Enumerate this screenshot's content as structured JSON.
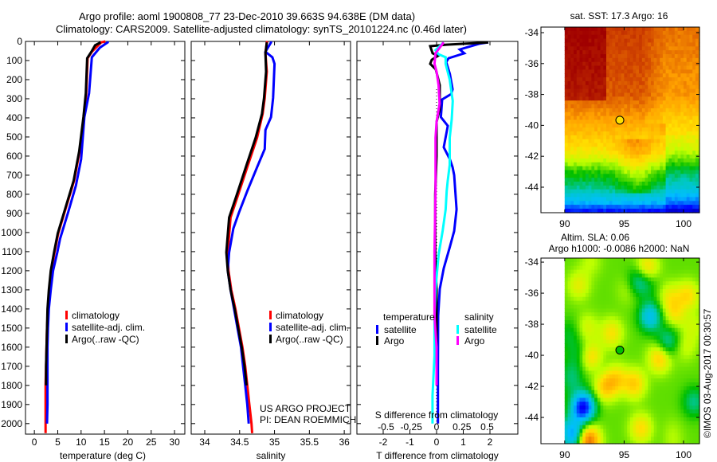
{
  "title": {
    "line1": "Argo profile: aoml 1900808_77 23-Dec-2010 39.663S 94.638E (DM data)",
    "line2": "Climatology: CARS2009. Satellite-adjusted climatology: synTS_20101224.nc (0.46d later)"
  },
  "colors": {
    "climatology": "#ff0000",
    "satellite": "#0000ff",
    "argo": "#000000",
    "sal_satellite": "#00ffff",
    "sal_argo": "#ff00ff"
  },
  "depth_axis": {
    "ticks": [
      0,
      100,
      200,
      300,
      400,
      500,
      600,
      700,
      800,
      900,
      1000,
      1100,
      1200,
      1300,
      1400,
      1500,
      1600,
      1700,
      1800,
      1900,
      2000
    ],
    "range": [
      0,
      2055
    ]
  },
  "chart_data": [
    {
      "type": "line",
      "name": "temperature",
      "xlabel": "temperature (deg C)",
      "xlim": [
        -1.9,
        32.2
      ],
      "xticks": [
        0,
        5,
        10,
        15,
        20,
        25,
        30
      ],
      "legend": {
        "placement": "lower-center",
        "items": [
          "climatology",
          "satellite-adj. clim.",
          "Argo(..raw -QC)"
        ]
      },
      "series": [
        {
          "name": "climatology",
          "color": "#ff0000",
          "points": [
            [
              15.2,
              0
            ],
            [
              14.3,
              5
            ],
            [
              12.3,
              54
            ],
            [
              11.4,
              88
            ],
            [
              11.1,
              271
            ],
            [
              10.6,
              396
            ],
            [
              9.7,
              575
            ],
            [
              8.5,
              729
            ],
            [
              6.8,
              867
            ],
            [
              5.1,
              1004
            ],
            [
              4.3,
              1104
            ],
            [
              3.6,
              1200
            ],
            [
              3.2,
              1300
            ],
            [
              2.9,
              1400
            ],
            [
              2.7,
              1500
            ],
            [
              2.6,
              1600
            ],
            [
              2.5,
              1700
            ],
            [
              2.4,
              1800
            ],
            [
              2.4,
              1900
            ],
            [
              2.4,
              2050
            ]
          ]
        },
        {
          "name": "satellite-adj. clim.",
          "color": "#0000ff",
          "points": [
            [
              15.7,
              0
            ],
            [
              15.7,
              5
            ],
            [
              14,
              33
            ],
            [
              12.3,
              83
            ],
            [
              11.7,
              271
            ],
            [
              10.7,
              396
            ],
            [
              10,
              617
            ],
            [
              8.9,
              754
            ],
            [
              7.2,
              896
            ],
            [
              5.5,
              1033
            ],
            [
              4.9,
              1104
            ],
            [
              4.0,
              1200
            ],
            [
              3.5,
              1300
            ],
            [
              3.1,
              1400
            ],
            [
              2.9,
              1500
            ],
            [
              2.8,
              1600
            ],
            [
              2.8,
              1700
            ],
            [
              2.8,
              1800
            ],
            [
              2.8,
              1900
            ],
            [
              2.7,
              2000
            ]
          ]
        },
        {
          "name": "Argo(..raw -QC)",
          "color": "#000000",
          "points": [
            [
              14.2,
              5
            ],
            [
              13.0,
              20
            ],
            [
              12.2,
              54
            ],
            [
              11.3,
              88
            ],
            [
              11.0,
              271
            ],
            [
              10.5,
              396
            ],
            [
              9.6,
              575
            ],
            [
              8.4,
              729
            ],
            [
              6.7,
              867
            ],
            [
              5.0,
              1004
            ],
            [
              4.2,
              1104
            ],
            [
              3.5,
              1200
            ],
            [
              3.1,
              1300
            ],
            [
              2.8,
              1400
            ],
            [
              2.7,
              1500
            ],
            [
              2.6,
              1600
            ],
            [
              2.5,
              1700
            ],
            [
              2.5,
              1800
            ]
          ]
        }
      ]
    },
    {
      "type": "line",
      "name": "salinity",
      "xlabel": "salinity",
      "xlim": [
        33.806,
        36.09
      ],
      "xticks": [
        34,
        34.5,
        35,
        35.5,
        36
      ],
      "legend": {
        "placement": "lower-center",
        "items": [
          "climatology",
          "satellite-adj. clim.",
          "Argo(..raw -QC)"
        ]
      },
      "annotation": [
        "US ARGO PROJECT",
        "PI: DEAN ROEMMICH"
      ],
      "series": [
        {
          "name": "climatology",
          "color": "#ff0000",
          "points": [
            [
              34.9,
              0
            ],
            [
              34.89,
              5
            ],
            [
              34.87,
              62
            ],
            [
              34.89,
              158
            ],
            [
              34.86,
              296
            ],
            [
              34.83,
              379
            ],
            [
              34.75,
              504
            ],
            [
              34.62,
              646
            ],
            [
              34.47,
              813
            ],
            [
              34.37,
              921
            ],
            [
              34.33,
              1104
            ],
            [
              34.34,
              1200
            ],
            [
              34.38,
              1300
            ],
            [
              34.44,
              1400
            ],
            [
              34.49,
              1500
            ],
            [
              34.54,
              1600
            ],
            [
              34.58,
              1700
            ],
            [
              34.61,
              1800
            ],
            [
              34.64,
              1900
            ],
            [
              34.67,
              2000
            ],
            [
              34.68,
              2050
            ]
          ]
        },
        {
          "name": "satellite-adj. clim.",
          "color": "#0000ff",
          "points": [
            [
              34.95,
              0
            ],
            [
              34.95,
              5
            ],
            [
              34.87,
              54
            ],
            [
              34.97,
              83
            ],
            [
              35.0,
              117
            ],
            [
              34.98,
              296
            ],
            [
              34.95,
              396
            ],
            [
              34.87,
              463
            ],
            [
              34.86,
              563
            ],
            [
              34.75,
              658
            ],
            [
              34.61,
              783
            ],
            [
              34.49,
              896
            ],
            [
              34.41,
              979
            ],
            [
              34.35,
              1104
            ],
            [
              34.33,
              1200
            ],
            [
              34.37,
              1300
            ],
            [
              34.42,
              1400
            ],
            [
              34.47,
              1500
            ],
            [
              34.52,
              1600
            ],
            [
              34.55,
              1700
            ],
            [
              34.58,
              1800
            ],
            [
              34.61,
              1900
            ],
            [
              34.63,
              2000
            ]
          ]
        },
        {
          "name": "Argo(..raw -QC)",
          "color": "#000000",
          "points": [
            [
              34.89,
              5
            ],
            [
              34.87,
              62
            ],
            [
              34.88,
              158
            ],
            [
              34.85,
              296
            ],
            [
              34.82,
              379
            ],
            [
              34.73,
              504
            ],
            [
              34.6,
              646
            ],
            [
              34.45,
              813
            ],
            [
              34.35,
              921
            ],
            [
              34.31,
              1104
            ],
            [
              34.33,
              1200
            ],
            [
              34.37,
              1300
            ],
            [
              34.43,
              1400
            ],
            [
              34.48,
              1500
            ],
            [
              34.53,
              1600
            ],
            [
              34.57,
              1700
            ],
            [
              34.6,
              1800
            ]
          ]
        }
      ]
    },
    {
      "type": "line",
      "name": "difference",
      "xlabel": "T difference from climatology",
      "xlabel2": "S difference from climatology",
      "xlim": [
        -2.985,
        3.045
      ],
      "xlim_s": [
        -0.787,
        0.803
      ],
      "xticks": [
        -2,
        -1,
        0,
        1,
        2
      ],
      "xticks_s": [
        -0.5,
        -0.25,
        0,
        0.25,
        0.5
      ],
      "legend": {
        "placement": "lower-center",
        "temperature_header": "temperature",
        "salinity_header": "salinity",
        "items": [
          "satellite",
          "Argo"
        ]
      },
      "series": [
        {
          "name": "T satellite",
          "axis": "T",
          "color": "#0000ff",
          "points": [
            [
              1.94,
              5
            ],
            [
              1.6,
              12
            ],
            [
              0.87,
              42
            ],
            [
              1.04,
              62
            ],
            [
              0.45,
              88
            ],
            [
              0.36,
              108
            ],
            [
              0.5,
              171
            ],
            [
              0.6,
              250
            ],
            [
              0.55,
              275
            ],
            [
              0.21,
              304
            ],
            [
              0.16,
              396
            ],
            [
              0.42,
              442
            ],
            [
              0.27,
              554
            ],
            [
              0.5,
              617
            ],
            [
              0.6,
              658
            ],
            [
              0.66,
              700
            ],
            [
              0.75,
              879
            ],
            [
              0.66,
              992
            ],
            [
              0.5,
              1075
            ],
            [
              0.27,
              1187
            ],
            [
              0.12,
              1296
            ],
            [
              0.06,
              1437
            ],
            [
              0.05,
              1700
            ],
            [
              0.05,
              2000
            ]
          ]
        },
        {
          "name": "T Argo",
          "axis": "T",
          "color": "#000000",
          "points": [
            [
              1.94,
              5
            ],
            [
              0.36,
              17
            ],
            [
              -0.24,
              25
            ],
            [
              -0.15,
              62
            ],
            [
              0.06,
              75
            ],
            [
              -0.18,
              96
            ],
            [
              -0.24,
              117
            ],
            [
              -0.03,
              146
            ],
            [
              0.12,
              229
            ],
            [
              0.12,
              354
            ],
            [
              0,
              421
            ],
            [
              0,
              600
            ],
            [
              -0.05,
              800
            ],
            [
              -0.05,
              1100
            ],
            [
              0,
              1300
            ],
            [
              0,
              1800
            ]
          ]
        },
        {
          "name": "S satellite",
          "axis": "S",
          "color": "#00ffff",
          "points": [
            [
              0.07,
              5
            ],
            [
              -0.01,
              46
            ],
            [
              0.02,
              67
            ],
            [
              0.09,
              83
            ],
            [
              0.09,
              117
            ],
            [
              0.13,
              200
            ],
            [
              0.16,
              312
            ],
            [
              0.15,
              408
            ],
            [
              0.13,
              504
            ],
            [
              0.13,
              646
            ],
            [
              0.11,
              729
            ],
            [
              0.1,
              783
            ],
            [
              0.09,
              879
            ],
            [
              0.06,
              992
            ],
            [
              0.02,
              1117
            ],
            [
              -0.01,
              1296
            ],
            [
              -0.02,
              1437
            ],
            [
              -0.02,
              1645
            ],
            [
              -0.04,
              1854
            ],
            [
              -0.04,
              2000
            ]
          ]
        },
        {
          "name": "S Argo",
          "axis": "S",
          "color": "#ff00ff",
          "points": [
            [
              0.07,
              5
            ],
            [
              -0.01,
              62
            ],
            [
              -0.02,
              117
            ],
            [
              0,
              158
            ],
            [
              0.02,
              229
            ],
            [
              0.03,
              325
            ],
            [
              0,
              421
            ],
            [
              -0.01,
              504
            ],
            [
              -0.01,
              783
            ],
            [
              -0.02,
              1100
            ],
            [
              -0.02,
              1437
            ],
            [
              0,
              1600
            ],
            [
              0,
              1800
            ]
          ]
        }
      ]
    },
    {
      "type": "heatmap",
      "name": "sst-map",
      "title": "sat. SST: 17.3 Argo: 16",
      "xlim": [
        88,
        101.34
      ],
      "ylim": [
        -45.65,
        -33.64
      ],
      "xticks": [
        90,
        95,
        100
      ],
      "yticks": [
        -34,
        -36,
        -38,
        -40,
        -42,
        -44
      ],
      "argo_position": {
        "lon": 94.638,
        "lat": -39.663
      }
    },
    {
      "type": "heatmap",
      "name": "sla-map",
      "title1": "Altim. SLA: 0.06",
      "title2": "Argo h1000: -0.0086 h2000: NaN",
      "xlim": [
        88,
        101.34
      ],
      "ylim": [
        -45.69,
        -33.74
      ],
      "xticks": [
        90,
        95,
        100
      ],
      "yticks": [
        -34,
        -36,
        -38,
        -40,
        -42,
        -44
      ],
      "argo_position": {
        "lon": 94.638,
        "lat": -39.663
      }
    }
  ],
  "copyright": "©IMOS 03-Aug-2017 00:30:57"
}
